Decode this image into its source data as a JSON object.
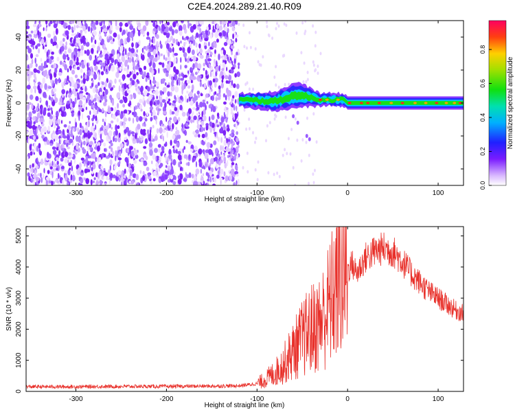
{
  "title": "C2E4.2024.289.21.40.R09",
  "chart_data": [
    {
      "type": "heatmap",
      "title": "C2E4.2024.289.21.40.R09",
      "xlabel": "Height of straight line (km)",
      "ylabel": "Frequency (Hz)",
      "xlim": [
        -355,
        128
      ],
      "ylim": [
        -50,
        50
      ],
      "xticks": [
        -300,
        -200,
        -100,
        0,
        100
      ],
      "yticks": [
        -40,
        -20,
        0,
        20,
        40
      ],
      "noise_region_x": [
        -355,
        -120
      ],
      "signal_band": [
        {
          "x": -120,
          "center_hz": 2,
          "halfwidth_hz": 4
        },
        {
          "x": -80,
          "center_hz": 1,
          "halfwidth_hz": 6
        },
        {
          "x": -55,
          "center_hz": 5,
          "halfwidth_hz": 8
        },
        {
          "x": -30,
          "center_hz": 2,
          "halfwidth_hz": 4
        },
        {
          "x": -5,
          "center_hz": 2,
          "halfwidth_hz": 4
        },
        {
          "x": 0,
          "center_hz": 0,
          "halfwidth_hz": 4
        },
        {
          "x": 128,
          "center_hz": 0,
          "halfwidth_hz": 4
        }
      ],
      "colorbar": {
        "label": "Normalized spectral amplitude",
        "ticks": [
          "0.0",
          "0.2",
          "0.4",
          "0.6",
          "0.8"
        ],
        "range": [
          0,
          0.97
        ]
      }
    },
    {
      "type": "line",
      "xlabel": "Height of straight line (km)",
      "ylabel": "SNR (10 * v/v)",
      "xlim": [
        -355,
        128
      ],
      "ylim": [
        0,
        5300
      ],
      "xticks": [
        -300,
        -200,
        -100,
        0,
        100
      ],
      "yticks": [
        0,
        1000,
        2000,
        3000,
        4000,
        5000
      ],
      "color": "#e8302a",
      "series": [
        {
          "name": "SNR",
          "x": [
            -355,
            -300,
            -250,
            -200,
            -150,
            -120,
            -100,
            -90,
            -80,
            -70,
            -60,
            -50,
            -40,
            -30,
            -20,
            -10,
            0,
            5,
            10,
            20,
            30,
            40,
            50,
            60,
            70,
            80,
            90,
            100,
            110,
            120,
            128
          ],
          "y": [
            150,
            150,
            160,
            160,
            170,
            180,
            250,
            400,
            600,
            900,
            1300,
            1700,
            2000,
            2200,
            2800,
            3600,
            3900,
            4100,
            3800,
            4300,
            4500,
            4600,
            4500,
            4200,
            3800,
            3500,
            3200,
            3000,
            2800,
            2600,
            2500
          ]
        }
      ]
    }
  ]
}
